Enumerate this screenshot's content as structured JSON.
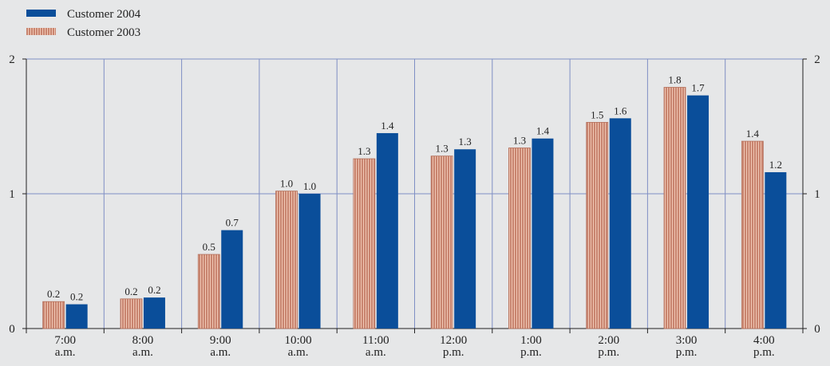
{
  "chart_data": {
    "type": "bar",
    "title": "",
    "xlabel": "",
    "ylabel": "",
    "ylim": [
      0,
      2
    ],
    "yticks": [
      0,
      1,
      2
    ],
    "grid": true,
    "legend_position": "top-left",
    "categories": [
      [
        "7:00",
        "a.m."
      ],
      [
        "8:00",
        "a.m."
      ],
      [
        "9:00",
        "a.m."
      ],
      [
        "10:00",
        "a.m."
      ],
      [
        "11:00",
        "a.m."
      ],
      [
        "12:00",
        "p.m."
      ],
      [
        "1:00",
        "p.m."
      ],
      [
        "2:00",
        "p.m."
      ],
      [
        "3:00",
        "p.m."
      ],
      [
        "4:00",
        "p.m."
      ]
    ],
    "series": [
      {
        "name": "Customer 2003",
        "color": "#c8846f",
        "stripe_color": "#f0c7b4",
        "pattern": "vertical-stripes",
        "values": [
          0.2,
          0.22,
          0.55,
          1.02,
          1.26,
          1.28,
          1.34,
          1.53,
          1.79,
          1.39
        ],
        "labels": [
          "0.2",
          "0.2",
          "0.5",
          "1.0",
          "1.3",
          "1.3",
          "1.3",
          "1.5",
          "1.8",
          "1.4"
        ]
      },
      {
        "name": "Customer 2004",
        "color": "#0a4e9a",
        "pattern": "solid",
        "values": [
          0.18,
          0.23,
          0.73,
          1.0,
          1.45,
          1.33,
          1.41,
          1.56,
          1.73,
          1.16
        ],
        "labels": [
          "0.2",
          "0.2",
          "0.7",
          "1.0",
          "1.4",
          "1.3",
          "1.4",
          "1.6",
          "1.7",
          "1.2"
        ]
      }
    ]
  },
  "legend": {
    "items": [
      {
        "name": "Customer 2004",
        "color": "#0a4e9a",
        "pattern": "solid"
      },
      {
        "name": "Customer 2003",
        "color": "#c8846f",
        "pattern": "vertical-stripes"
      }
    ]
  }
}
